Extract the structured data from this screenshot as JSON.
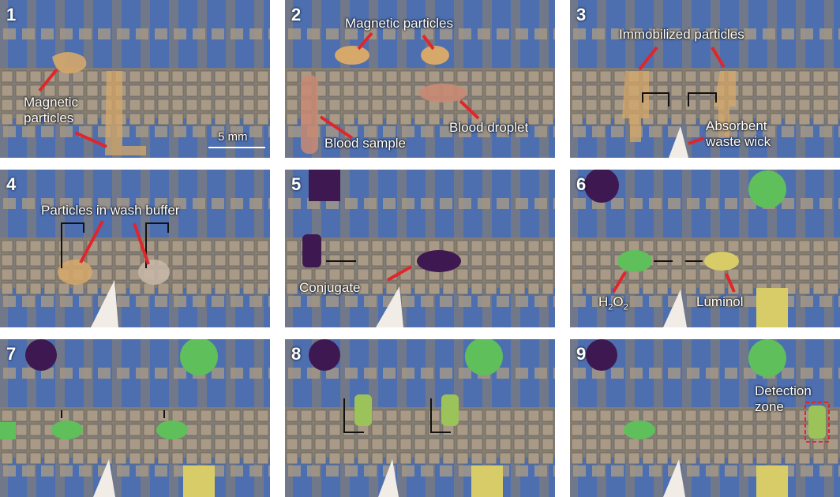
{
  "panels": [
    {
      "number": "1",
      "labels": {
        "magnetic": "Magnetic\nparticles",
        "scale": "5 mm"
      }
    },
    {
      "number": "2",
      "labels": {
        "magnetic": "Magnetic particles",
        "blood_sample": "Blood sample",
        "blood_droplet": "Blood droplet"
      }
    },
    {
      "number": "3",
      "labels": {
        "immobilized": "Immobilized particles",
        "wick": "Absorbent\nwaste wick"
      }
    },
    {
      "number": "4",
      "labels": {
        "wash": "Particles in wash buffer"
      }
    },
    {
      "number": "5",
      "labels": {
        "conjugate": "Conjugate"
      }
    },
    {
      "number": "6",
      "labels": {
        "h2o2": "H",
        "h2o2_sub1": "2",
        "h2o2_o": "O",
        "h2o2_sub2": "2",
        "luminol": "Luminol"
      }
    },
    {
      "number": "7",
      "labels": {}
    },
    {
      "number": "8",
      "labels": {}
    },
    {
      "number": "9",
      "labels": {
        "detection": "Detection\nzone"
      }
    }
  ],
  "colors": {
    "chip_bg": "#8a7f6f",
    "blue_grid": "#4d6fb0",
    "electrode": "#a89a86",
    "arrow_red": "#e0262b",
    "particle": "#d6a86a",
    "blood": "#c98a73",
    "conjugate": "#3e1850",
    "h2o2_green": "#5fbf5a",
    "luminol_yellow": "#d8cc68",
    "wick": "#f2ece6"
  }
}
